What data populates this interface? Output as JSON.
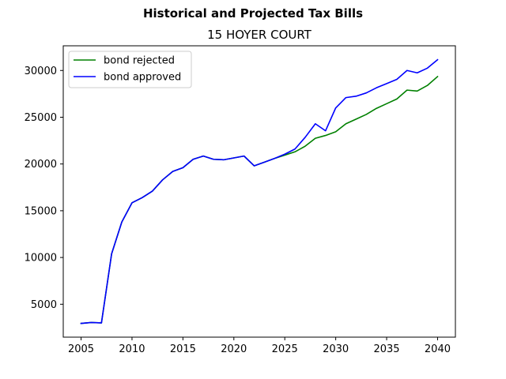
{
  "chart_data": {
    "type": "line",
    "suptitle": "Historical and Projected Tax Bills",
    "title": "15 HOYER COURT",
    "xlabel": "",
    "ylabel": "",
    "xlim": [
      2003.25,
      2041.75
    ],
    "ylim": [
      1480,
      32640
    ],
    "xticks": [
      2005,
      2010,
      2015,
      2020,
      2025,
      2030,
      2035,
      2040
    ],
    "yticks": [
      5000,
      10000,
      15000,
      20000,
      25000,
      30000
    ],
    "grid": false,
    "legend_position": "top-left",
    "x": [
      2005,
      2006,
      2007,
      2008,
      2009,
      2010,
      2011,
      2012,
      2013,
      2014,
      2015,
      2016,
      2017,
      2018,
      2019,
      2020,
      2021,
      2022,
      2023,
      2024,
      2025,
      2026,
      2027,
      2028,
      2029,
      2030,
      2031,
      2032,
      2033,
      2034,
      2035,
      2036,
      2037,
      2038,
      2039,
      2040
    ],
    "series": [
      {
        "name": "bond rejected",
        "color": "#008000",
        "values": [
          2950,
          3050,
          3000,
          10400,
          13800,
          15850,
          16400,
          17100,
          18300,
          19200,
          19600,
          20500,
          20850,
          20500,
          20450,
          20650,
          20850,
          19800,
          20200,
          20600,
          20950,
          21300,
          21900,
          22750,
          23050,
          23450,
          24300,
          24800,
          25300,
          25950,
          26450,
          26950,
          27900,
          27800,
          28400,
          29350
        ]
      },
      {
        "name": "bond approved",
        "color": "#0000ff",
        "values": [
          2950,
          3050,
          3000,
          10400,
          13800,
          15850,
          16400,
          17100,
          18300,
          19200,
          19600,
          20500,
          20850,
          20500,
          20450,
          20650,
          20850,
          19800,
          20200,
          20600,
          21050,
          21600,
          22850,
          24300,
          23550,
          26000,
          27100,
          27250,
          27600,
          28150,
          28600,
          29050,
          30000,
          29750,
          30250,
          31150
        ]
      }
    ]
  }
}
